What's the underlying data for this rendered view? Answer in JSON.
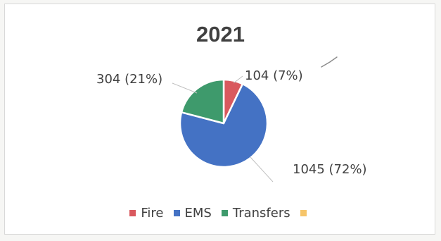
{
  "chart_data": {
    "type": "pie",
    "title": "2021",
    "categories": [
      "Fire",
      "EMS",
      "Transfers",
      ""
    ],
    "values": [
      104,
      1045,
      304,
      0
    ],
    "labels": [
      "104 (7%)",
      "1045 (72%)",
      "304 (21%)"
    ],
    "colors": [
      "#d9595e",
      "#4472c4",
      "#3e9a6c",
      "#f6c56a"
    ],
    "legend_position": "bottom"
  }
}
